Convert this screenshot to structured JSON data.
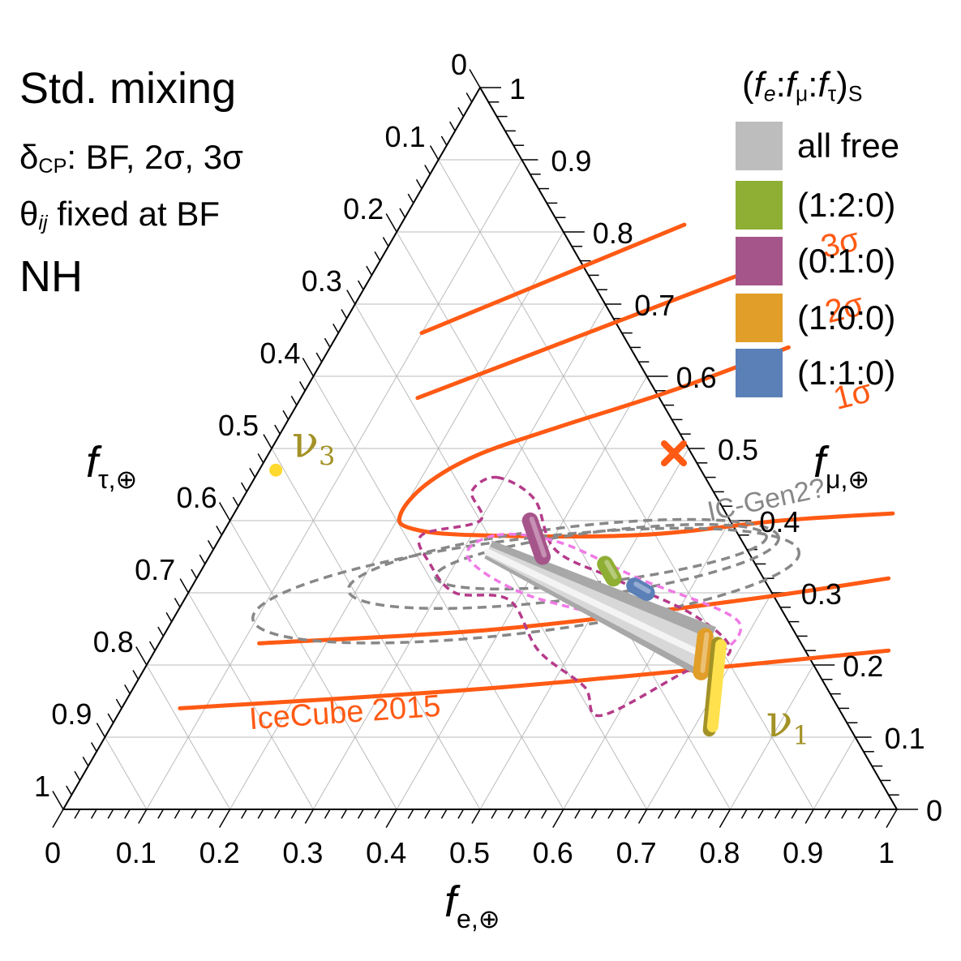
{
  "info": {
    "line1": "Std. mixing",
    "line2_symbol": "δ",
    "line2_sub": "CP",
    "line2_rest": ": BF, 2σ, 3σ",
    "line3_symbol": "θ",
    "line3_sub": "ij",
    "line3_rest": " fixed at BF",
    "line4": "NH"
  },
  "legend": {
    "title_open": "(",
    "title_fe": "f",
    "title_e": "e",
    "title_c1": ":",
    "title_fmu": "f",
    "title_mu": "μ",
    "title_c2": ":",
    "title_ftau": "f",
    "title_tau": "τ",
    "title_close": ")",
    "title_s": "S",
    "items": [
      {
        "label": "all free",
        "color": "#bdbdbd"
      },
      {
        "label": "(1:2:0)",
        "color": "#8fae34"
      },
      {
        "label": "(0:1:0)",
        "color": "#a6558a"
      },
      {
        "label": "(1:0:0)",
        "color": "#e19e28"
      },
      {
        "label": "(1:1:0)",
        "color": "#5b80b8"
      }
    ]
  },
  "chart_data": {
    "type": "ternary",
    "axes": {
      "bottom": {
        "label": "f",
        "sub": "e,⊕",
        "ticks": [
          "0",
          "0.1",
          "0.2",
          "0.3",
          "0.4",
          "0.5",
          "0.6",
          "0.7",
          "0.8",
          "0.9",
          "1"
        ]
      },
      "right": {
        "label": "f",
        "sub": "μ,⊕",
        "ticks": [
          "0",
          "0.1",
          "0.2",
          "0.3",
          "0.4",
          "0.5",
          "0.6",
          "0.7",
          "0.8",
          "0.9",
          "1"
        ]
      },
      "left": {
        "label": "f",
        "sub": "τ,⊕",
        "ticks": [
          "0",
          "0.1",
          "0.2",
          "0.3",
          "0.4",
          "0.5",
          "0.6",
          "0.7",
          "0.8",
          "0.9",
          "1"
        ]
      }
    },
    "icecube_color": "#ff5a14",
    "icecube_label": "IceCube 2015",
    "contour_labels": [
      "1σ",
      "2σ",
      "3σ"
    ],
    "icecube_contours": {
      "3sigma_upper": [
        [
          0.34,
          0.81
        ],
        [
          0.1,
          0.66
        ]
      ],
      "2sigma_upper": [
        [
          0.44,
          0.74
        ],
        [
          0.14,
          0.57
        ]
      ],
      "1sigma_upper": [
        [
          0.55,
          0.64
        ],
        [
          0.44,
          0.58
        ],
        [
          0.33,
          0.53
        ],
        [
          0.25,
          0.49
        ],
        [
          0.21,
          0.45
        ],
        [
          0.2,
          0.41
        ],
        [
          0.22,
          0.39
        ],
        [
          0.3,
          0.38
        ],
        [
          0.5,
          0.38
        ],
        [
          0.66,
          0.4
        ],
        [
          0.79,
          0.41
        ]
      ],
      "2sigma_lower": [
        [
          0.12,
          0.23
        ],
        [
          0.4,
          0.25
        ],
        [
          0.67,
          0.29
        ],
        [
          0.83,
          0.32
        ]
      ],
      "3sigma_lower": [
        [
          0.07,
          0.14
        ],
        [
          0.45,
          0.17
        ],
        [
          0.88,
          0.22
        ]
      ]
    },
    "best_fit_point": {
      "label": "×",
      "fe": 0.5,
      "fmu": 0.5,
      "color": "#ff5a14"
    },
    "nu3_point": {
      "label": "ν₃",
      "fe": 0.02,
      "fmu": 0.47,
      "color": "#ffd92e"
    },
    "nu1_band": {
      "label": "ν₁",
      "points": [
        [
          0.67,
          0.23
        ],
        [
          0.72,
          0.11
        ]
      ],
      "color": "#ffe14d",
      "edge": "#a39226"
    },
    "icgen2_label": "IC-Gen2?",
    "icgen2_color": "#888888",
    "icgen2_contours": [
      {
        "center": [
          0.43,
          0.34
        ],
        "rx": 0.26,
        "ry": 0.05,
        "angle": 7
      },
      {
        "center": [
          0.47,
          0.35
        ],
        "rx": 0.2,
        "ry": 0.035,
        "angle": 7
      },
      {
        "center": [
          0.4,
          0.31
        ],
        "rx": 0.33,
        "ry": 0.065,
        "angle": 7
      }
    ],
    "magenta_region": [
      [
        0.29,
        0.46
      ],
      [
        0.35,
        0.43
      ],
      [
        0.41,
        0.36
      ],
      [
        0.5,
        0.32
      ],
      [
        0.62,
        0.27
      ],
      [
        0.69,
        0.22
      ],
      [
        0.65,
        0.19
      ],
      [
        0.58,
        0.13
      ],
      [
        0.54,
        0.17
      ],
      [
        0.46,
        0.22
      ],
      [
        0.39,
        0.29
      ],
      [
        0.32,
        0.3
      ],
      [
        0.27,
        0.34
      ],
      [
        0.24,
        0.38
      ],
      [
        0.3,
        0.4
      ],
      [
        0.27,
        0.44
      ]
    ],
    "magenta_color": "#b53b8a",
    "pink_region": [
      [
        0.33,
        0.38
      ],
      [
        0.41,
        0.37
      ],
      [
        0.53,
        0.32
      ],
      [
        0.68,
        0.26
      ],
      [
        0.66,
        0.21
      ],
      [
        0.54,
        0.26
      ],
      [
        0.4,
        0.3
      ],
      [
        0.31,
        0.35
      ]
    ],
    "pink_color": "#f07ae6",
    "allfree_band": {
      "from": [
        0.33,
        0.36
      ],
      "to": [
        0.66,
        0.22
      ],
      "color": "#d8d8d8"
    },
    "flavor_bands": [
      {
        "name": "(0:1:0)",
        "from": [
          0.36,
          0.4
        ],
        "to": [
          0.4,
          0.35
        ],
        "color": "#a6558a"
      },
      {
        "name": "(1:2:0)",
        "from": [
          0.48,
          0.34
        ],
        "to": [
          0.5,
          0.32
        ],
        "color": "#8fae34"
      },
      {
        "name": "(1:1:0)",
        "from": [
          0.53,
          0.31
        ],
        "to": [
          0.55,
          0.3
        ],
        "color": "#5b80b8"
      },
      {
        "name": "(1:0:0)",
        "from": [
          0.65,
          0.24
        ],
        "to": [
          0.67,
          0.19
        ],
        "color": "#e19e28"
      }
    ]
  }
}
